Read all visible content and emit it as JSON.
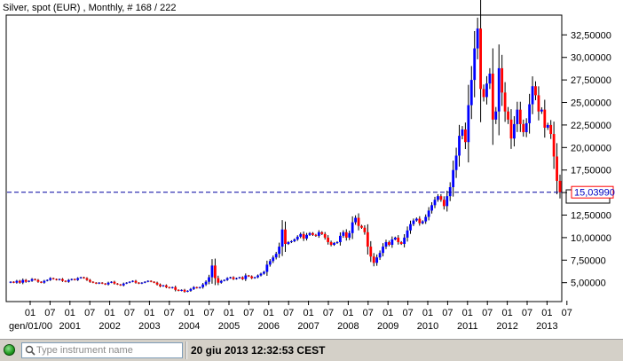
{
  "chart_data": {
    "type": "candlestick",
    "title": "Silver, spot (EUR) , Monthly, # 168 / 222",
    "ylim": [
      3.0,
      34.6
    ],
    "y_ticks": [
      "5,00000",
      "7,50000",
      "10,00000",
      "12,50000",
      "15,00000",
      "17,50000",
      "20,00000",
      "22,50000",
      "25,00000",
      "27,50000",
      "30,00000",
      "32,50000"
    ],
    "y_tick_values": [
      5.0,
      7.5,
      10.0,
      12.5,
      15.0,
      17.5,
      20.0,
      22.5,
      25.0,
      27.5,
      30.0,
      32.5
    ],
    "x_tick_labels": [
      "01",
      "07",
      "01",
      "07",
      "01",
      "07",
      "01",
      "07",
      "01",
      "07",
      "01",
      "07",
      "01",
      "07",
      "01",
      "07",
      "01",
      "07",
      "01",
      "07",
      "01",
      "07",
      "01",
      "07",
      "01",
      "07",
      "01",
      "07"
    ],
    "x_year_labels": [
      "gen/01/00",
      "2001",
      "2002",
      "2003",
      "2004",
      "2005",
      "2006",
      "2007",
      "2008",
      "2009",
      "2010",
      "2011",
      "2012",
      "2013"
    ],
    "current_price": 15.0399,
    "current_price_label": "15,03990",
    "up_color": "#0000ff",
    "down_color": "#ff0000",
    "monthly_close": [
      5.1,
      5.0,
      5.2,
      5.0,
      5.3,
      5.1,
      5.2,
      5.4,
      5.3,
      5.1,
      5.0,
      5.2,
      5.3,
      5.5,
      5.4,
      5.3,
      5.4,
      5.2,
      5.1,
      5.3,
      5.4,
      5.3,
      5.5,
      5.6,
      5.5,
      5.3,
      5.1,
      5.0,
      4.9,
      5.0,
      4.9,
      4.8,
      5.0,
      5.1,
      4.9,
      4.8,
      4.7,
      4.9,
      5.0,
      5.1,
      5.2,
      5.0,
      4.9,
      5.0,
      5.1,
      5.2,
      5.1,
      5.0,
      4.8,
      4.6,
      4.7,
      4.5,
      4.4,
      4.5,
      4.2,
      4.1,
      4.2,
      4.0,
      4.1,
      4.3,
      4.5,
      4.4,
      4.5,
      4.8,
      5.1,
      5.6,
      6.9,
      5.5,
      5.0,
      5.2,
      5.3,
      5.5,
      5.6,
      5.4,
      5.5,
      5.6,
      5.4,
      5.8,
      5.7,
      5.5,
      5.6,
      5.8,
      6.0,
      6.2,
      7.0,
      7.4,
      7.8,
      8.2,
      9.0,
      10.9,
      9.3,
      9.5,
      9.6,
      9.8,
      10.1,
      10.4,
      9.9,
      10.3,
      10.5,
      10.3,
      10.2,
      10.6,
      10.4,
      10.0,
      9.5,
      9.2,
      9.4,
      9.5,
      10.2,
      10.6,
      10.0,
      10.5,
      11.7,
      12.2,
      11.3,
      11.1,
      10.6,
      9.0,
      7.9,
      7.2,
      7.8,
      8.3,
      9.0,
      9.5,
      9.2,
      9.8,
      10.0,
      9.5,
      9.3,
      10.0,
      10.8,
      11.5,
      11.9,
      12.1,
      11.6,
      11.8,
      12.3,
      13.0,
      13.6,
      14.2,
      14.6,
      14.2,
      13.5,
      14.6,
      15.6,
      17.5,
      19.1,
      21.3,
      22.0,
      20.6,
      24.7,
      27.5,
      31.0,
      33.2,
      26.5,
      25.6,
      27.1,
      28.2,
      23.1,
      24.0,
      28.8,
      26.1,
      24.0,
      23.1,
      21.0,
      22.6,
      24.2,
      22.6,
      21.7,
      22.7,
      24.8,
      26.8,
      25.8,
      24.0,
      24.2,
      22.2,
      22.5,
      21.5,
      19.0,
      16.3,
      15.04
    ]
  },
  "search": {
    "placeholder": "Type instrument name"
  },
  "status": {
    "datetime": "20 giu 2013 12:32:53 CEST"
  },
  "icons": {
    "connection": "connection-status-icon",
    "search": "search-icon"
  }
}
